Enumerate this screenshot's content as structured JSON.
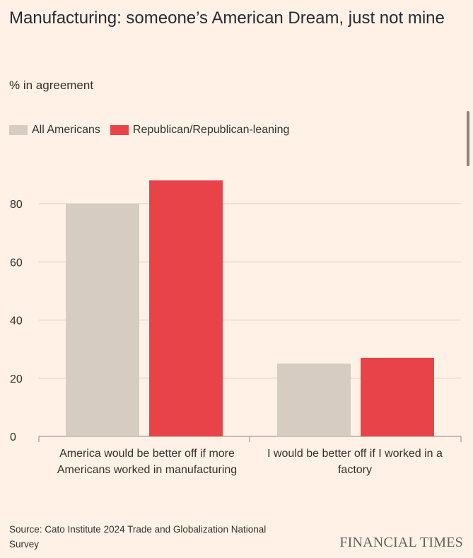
{
  "title": "Manufacturing: someone’s American Dream, just not mine",
  "subtitle": "% in agreement",
  "legend": [
    {
      "label": "All Americans",
      "color": "#D7CCC1"
    },
    {
      "label": "Republican/Republican-leaning",
      "color": "#E9434A"
    }
  ],
  "chart_data": {
    "type": "bar",
    "title": "Manufacturing: someone’s American Dream, just not mine",
    "ylabel": "% in agreement",
    "xlabel": "",
    "ylim": [
      0,
      90
    ],
    "yticks": [
      "0",
      "20",
      "40",
      "60",
      "80"
    ],
    "categories": [
      "America would be better off if more Americans worked in manufacturing",
      "I would be better off if I worked in a factory"
    ],
    "series": [
      {
        "name": "All Americans",
        "values": [
          80,
          25
        ],
        "color": "#D7CCC1"
      },
      {
        "name": "Republican/Republican-leaning",
        "values": [
          88,
          27
        ],
        "color": "#E9434A"
      }
    ]
  },
  "category_labels": [
    "America would be better off if more Americans worked in manufacturing",
    "I would be better off if I worked in a factory"
  ],
  "source": "Source: Cato Institute 2024 Trade and Globalization National Survey",
  "brand": "FINANCIAL TIMES"
}
